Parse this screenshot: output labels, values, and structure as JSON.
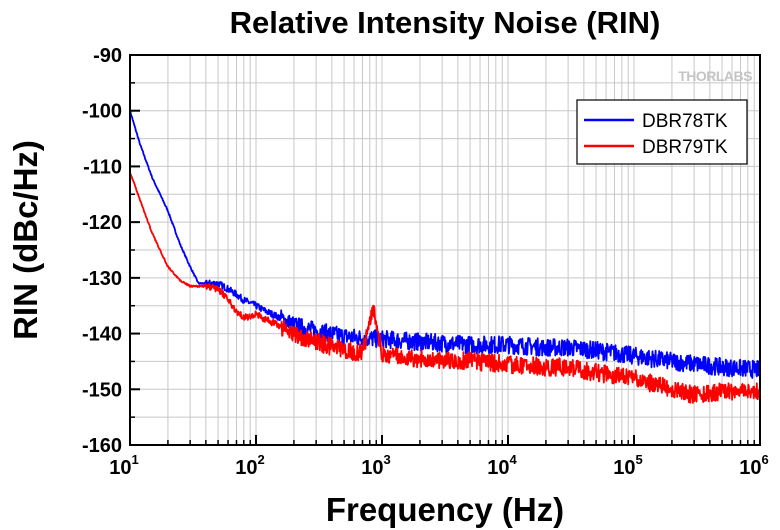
{
  "chart_data": {
    "type": "line",
    "title": "Relative Intensity Noise (RIN)",
    "xlabel": "Frequency (Hz)",
    "ylabel": "RIN (dBc/Hz)",
    "x_scale": "log",
    "xlim": [
      10,
      1000000
    ],
    "ylim": [
      -160,
      -90
    ],
    "x_ticks": [
      10,
      100,
      1000,
      10000,
      100000,
      1000000
    ],
    "x_tick_labels": [
      {
        "base": "10",
        "exp": "1"
      },
      {
        "base": "10",
        "exp": "2"
      },
      {
        "base": "10",
        "exp": "3"
      },
      {
        "base": "10",
        "exp": "4"
      },
      {
        "base": "10",
        "exp": "5"
      },
      {
        "base": "10",
        "exp": "6"
      }
    ],
    "y_ticks": [
      -90,
      -100,
      -110,
      -120,
      -130,
      -140,
      -150,
      -160
    ],
    "y_tick_labels": [
      "-90",
      "-100",
      "-110",
      "-120",
      "-130",
      "-140",
      "-150",
      "-160"
    ],
    "grid": true,
    "legend_position": "top-right",
    "watermark": "THORLABS",
    "series": [
      {
        "name": "DBR78TK",
        "color": "#0000ff",
        "x": [
          10,
          12,
          15,
          20,
          25,
          30,
          35,
          40,
          50,
          60,
          70,
          80,
          90,
          100,
          120,
          150,
          200,
          300,
          500,
          700,
          1000,
          2000,
          5000,
          10000,
          20000,
          30000,
          50000,
          100000,
          200000,
          500000,
          1000000
        ],
        "y": [
          -100,
          -106,
          -112,
          -118,
          -124,
          -128,
          -131,
          -131,
          -131,
          -132,
          -133,
          -134,
          -134.5,
          -135,
          -136,
          -137,
          -138.5,
          -139.5,
          -140.5,
          -140.8,
          -141,
          -141.5,
          -142,
          -142,
          -142.5,
          -142.5,
          -143,
          -144,
          -145,
          -146,
          -146.5
        ]
      },
      {
        "name": "DBR79TK",
        "color": "#ff0000",
        "x": [
          10,
          12,
          15,
          20,
          25,
          30,
          35,
          40,
          50,
          60,
          70,
          80,
          90,
          100,
          120,
          150,
          200,
          300,
          500,
          700,
          850,
          1000,
          2000,
          5000,
          10000,
          20000,
          30000,
          50000,
          100000,
          200000,
          300000,
          500000,
          1000000
        ],
        "y": [
          -111,
          -116,
          -122,
          -128,
          -130.5,
          -131.5,
          -131.5,
          -131.5,
          -132,
          -134,
          -136,
          -137,
          -137,
          -136.5,
          -137.5,
          -138.5,
          -140,
          -141.5,
          -143,
          -143.5,
          -135,
          -144,
          -144.5,
          -145,
          -145.5,
          -146,
          -146,
          -147,
          -148,
          -150,
          -151,
          -150.5,
          -150.5
        ]
      }
    ]
  }
}
